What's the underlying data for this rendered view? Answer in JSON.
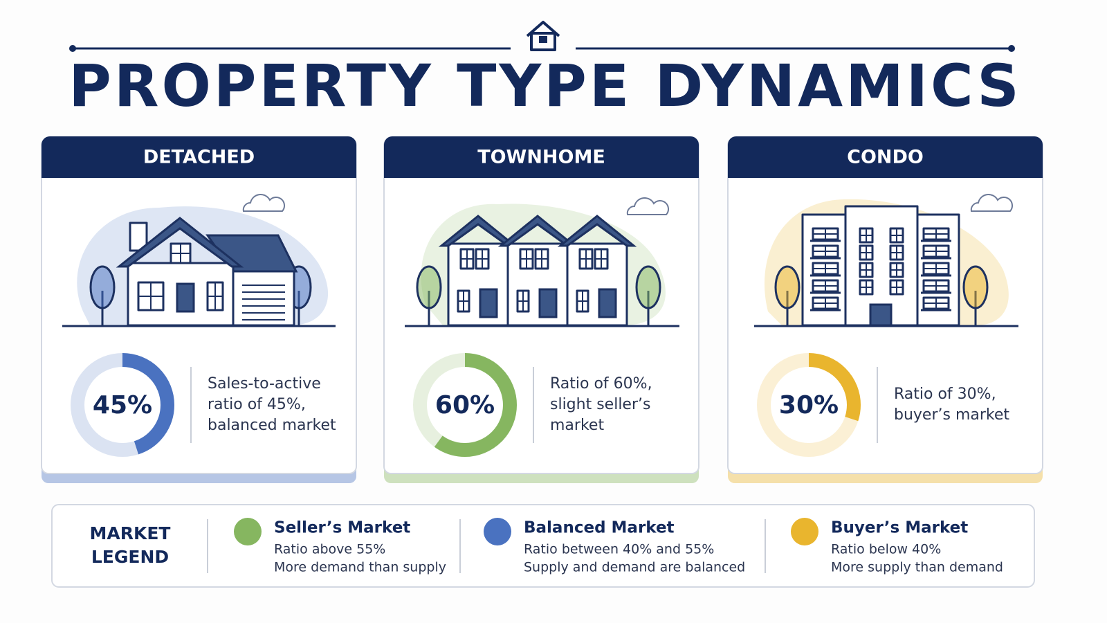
{
  "header": {
    "title": "PROPERTY TYPE DYNAMICS"
  },
  "cards": [
    {
      "name": "DETACHED",
      "ratio": 45,
      "ratio_label": "45%",
      "color": "#4a72c0",
      "description": [
        "Sales-to-active",
        "ratio of 45%,",
        "balanced market"
      ]
    },
    {
      "name": "TOWNHOME",
      "ratio": 60,
      "ratio_label": "60%",
      "color": "#86b660",
      "description": [
        "Ratio of 60%,",
        "slight seller’s",
        "market"
      ]
    },
    {
      "name": "CONDO",
      "ratio": 30,
      "ratio_label": "30%",
      "color": "#e9b52e",
      "description": [
        "Ratio of 30%,",
        "buyer’s market"
      ]
    }
  ],
  "legend": {
    "title": [
      "MARKET",
      "LEGEND"
    ],
    "items": [
      {
        "name": "Seller’s Market",
        "color": "#86b660",
        "lines": [
          "Ratio above 55%",
          "More demand than supply"
        ]
      },
      {
        "name": "Balanced Market",
        "color": "#4a72c0",
        "lines": [
          "Ratio between 40% and 55%",
          "Supply and demand are balanced"
        ]
      },
      {
        "name": "Buyer’s Market",
        "color": "#e9b52e",
        "lines": [
          "Ratio below 40%",
          "More supply than demand"
        ]
      }
    ]
  }
}
